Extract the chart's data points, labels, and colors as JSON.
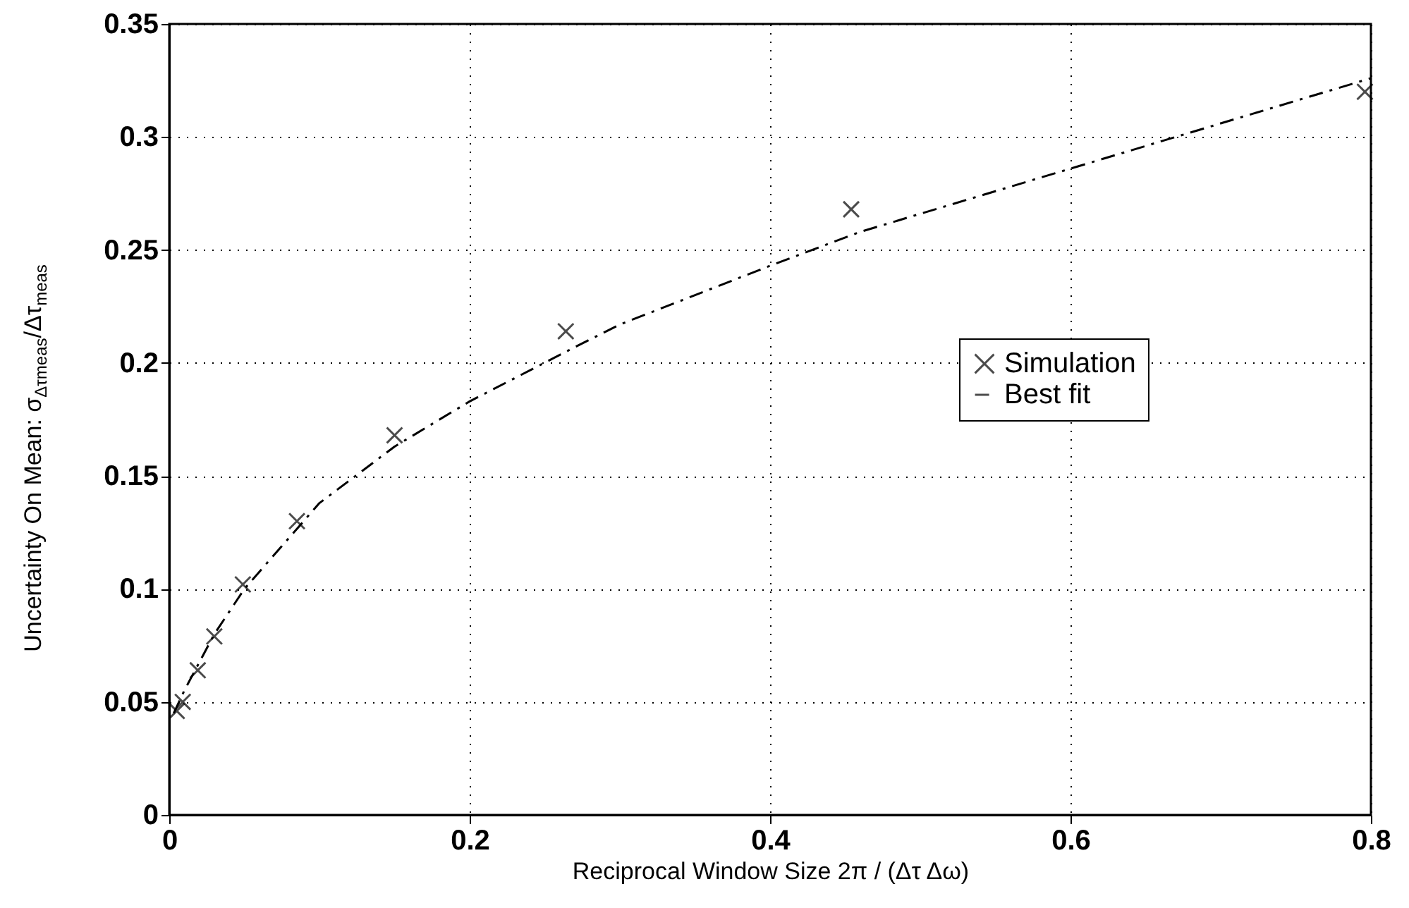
{
  "chart_data": {
    "type": "scatter",
    "xlabel": "Reciprocal Window Size 2π / (Δτ Δω)",
    "ylabel": "Uncertainty On Mean: σ$_{Δτmeas}$/Δτ$_{meas}$",
    "xlim": [
      0,
      0.8
    ],
    "xticks": [
      0,
      0.2,
      0.4,
      0.6,
      0.8
    ],
    "ylim": [
      0,
      0.35
    ],
    "yticks": [
      0,
      0.05,
      0.1,
      0.15,
      0.2,
      0.25,
      0.3,
      0.35
    ],
    "grid": true,
    "legend": "right",
    "series": [
      {
        "name": "Simulation",
        "marker": "cross",
        "color": "#000000",
        "x": [
          0.005,
          0.009,
          0.019,
          0.03,
          0.049,
          0.085,
          0.15,
          0.264,
          0.454,
          0.796
        ],
        "values": [
          0.046,
          0.05,
          0.064,
          0.079,
          0.102,
          0.13,
          0.168,
          0.214,
          0.268,
          0.32
        ]
      },
      {
        "name": "Best fit",
        "type": "line",
        "line_style": "dashdot",
        "color": "#000000",
        "x": [
          0.003,
          0.01,
          0.03,
          0.05,
          0.1,
          0.15,
          0.2,
          0.27,
          0.3,
          0.4,
          0.46,
          0.6,
          0.8
        ],
        "values": [
          0.045,
          0.055,
          0.08,
          0.1,
          0.138,
          0.163,
          0.183,
          0.207,
          0.217,
          0.243,
          0.258,
          0.286,
          0.326
        ]
      }
    ]
  }
}
